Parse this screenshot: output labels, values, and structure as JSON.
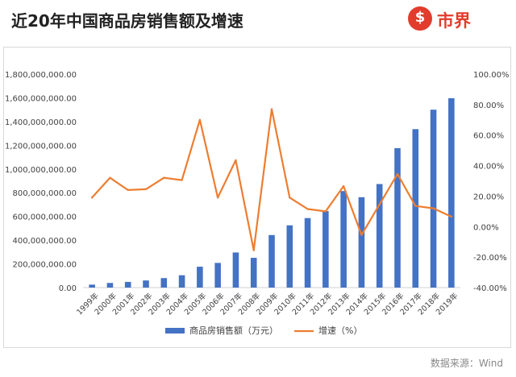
{
  "header": {
    "title": "近20年中国商品房销售额及增速",
    "logo_text": "市界",
    "logo_mark": "$"
  },
  "source": "数据来源：Wind",
  "colors": {
    "bar": "#4472c4",
    "line": "#ed7d31",
    "logo": "#e23c2c"
  },
  "chart_data": {
    "type": "bar+line",
    "categories": [
      "1999年",
      "2000年",
      "2001年",
      "2002年",
      "2003年",
      "2004年",
      "2005年",
      "2006年",
      "2007年",
      "2008年",
      "2009年",
      "2010年",
      "2011年",
      "2012年",
      "2013年",
      "2014年",
      "2015年",
      "2016年",
      "2017年",
      "2018年",
      "2019年"
    ],
    "series": [
      {
        "name": "商品房销售额（万元）",
        "type": "bar",
        "axis": "left",
        "values": [
          25000000,
          39000000,
          48000000,
          60000000,
          80000000,
          104000000,
          176000000,
          208000000,
          296000000,
          251000000,
          443000000,
          525000000,
          586000000,
          645000000,
          814000000,
          762000000,
          873000000,
          1176000000,
          1336000000,
          1500000000,
          1597000000
        ]
      },
      {
        "name": "增速（%）",
        "type": "line",
        "axis": "right",
        "values": [
          19,
          32,
          24,
          24.5,
          32,
          30.5,
          70,
          19,
          43.5,
          -15.5,
          77,
          19,
          11.5,
          10,
          26.5,
          -5.5,
          14.5,
          34.5,
          13.5,
          12,
          6.5
        ]
      }
    ],
    "left_axis": {
      "ylim": [
        0,
        1800000000
      ],
      "ticks": [
        "0.00",
        "200,000,000.00",
        "400,000,000.00",
        "600,000,000.00",
        "800,000,000.00",
        "1,000,000,000.00",
        "1,200,000,000.00",
        "1,400,000,000.00",
        "1,600,000,000.00",
        "1,800,000,000.00"
      ]
    },
    "right_axis": {
      "ylim": [
        -40,
        100
      ],
      "ticks": [
        "-40.00%",
        "-20.00%",
        "0.00%",
        "20.00%",
        "40.00%",
        "60.00%",
        "80.00%",
        "100.00%"
      ]
    },
    "legend": "bottom",
    "grid": false
  }
}
